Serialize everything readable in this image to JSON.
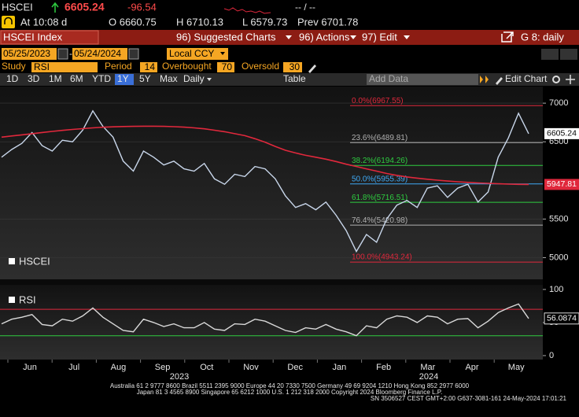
{
  "header": {
    "ticker": "HSCEI",
    "last": "6605.24",
    "change": "-96.54",
    "bid_ask": "-- / --",
    "time": "At 10:08 d",
    "open": "O 6660.75",
    "high": "H 6710.13",
    "low": "L 6579.73",
    "prev": "Prev 6701.78"
  },
  "menu": {
    "security": "HSCEI Index",
    "suggested": "96) Suggested Charts",
    "actions": "96) Actions",
    "edit": "97) Edit",
    "page": "G 8: daily"
  },
  "range": {
    "start": "05/25/2023",
    "end": "05/24/2024",
    "currency": "Local CCY"
  },
  "study": {
    "label": "Study",
    "name": "RSI",
    "period_label": "Period",
    "period": 14,
    "overbought_label": "Overbought",
    "overbought": 70,
    "oversold_label": "Oversold",
    "oversold": 30
  },
  "toolbar": {
    "periods": [
      "1D",
      "3D",
      "1M",
      "6M",
      "YTD",
      "1Y",
      "5Y",
      "Max"
    ],
    "frequency": "Daily",
    "table": "Table",
    "add_data": "Add Data",
    "edit_chart": "Edit Chart"
  },
  "chart_data": [
    {
      "type": "line",
      "series": [
        {
          "name": "HSCEI",
          "color": "#c8d6ea",
          "values": [
            6300,
            6400,
            6480,
            6620,
            6450,
            6380,
            6520,
            6500,
            6650,
            6900,
            6700,
            6560,
            6250,
            6120,
            6380,
            6300,
            6200,
            6250,
            6150,
            6120,
            6220,
            6020,
            5950,
            6080,
            6050,
            6180,
            6150,
            6020,
            5800,
            5650,
            5700,
            5620,
            5720,
            5550,
            5350,
            5080,
            5300,
            5200,
            5500,
            5680,
            5740,
            5650,
            5900,
            5930,
            5780,
            5900,
            5950,
            5720,
            5850,
            6300,
            6550,
            6870,
            6605.24
          ]
        },
        {
          "color": "#e0283c",
          "values": [
            6560,
            6575,
            6590,
            6605,
            6620,
            6635,
            6648,
            6660,
            6670,
            6680,
            6688,
            6694,
            6698,
            6700,
            6702,
            6702,
            6700,
            6696,
            6690,
            6680,
            6668,
            6650,
            6630,
            6605,
            6580,
            6540,
            6495,
            6440,
            6390,
            6355,
            6325,
            6300,
            6275,
            6245,
            6210,
            6180,
            6150,
            6120,
            6090,
            6065,
            6045,
            6030,
            6015,
            6003,
            5992,
            5983,
            5975,
            5968,
            5962,
            5957,
            5952,
            5949,
            5947.81
          ]
        }
      ],
      "ylim": [
        4720,
        7215
      ],
      "yticks": [
        5000,
        5500,
        6500,
        7000
      ],
      "grid": true,
      "x_labels": [
        "Jun",
        "Jul",
        "Aug",
        "Sep",
        "Oct",
        "Nov",
        "Dec",
        "Jan",
        "Feb",
        "Mar",
        "Apr",
        "May"
      ],
      "year_labels": [
        "2023",
        "2024"
      ],
      "levels": [
        {
          "value": 6967.55,
          "label": "0.0%(6967.55)",
          "color": "#e0283c"
        },
        {
          "value": 6489.81,
          "label": "23.6%(6489.81)",
          "color": "#b0b0b0"
        },
        {
          "value": 6194.26,
          "label": "38.2%(6194.26)",
          "color": "#2ecc40"
        },
        {
          "value": 5955.39,
          "label": "50.0%(5955.39)",
          "color": "#3fa9f5"
        },
        {
          "value": 5716.51,
          "label": "61.8%(5716.51)",
          "color": "#2ecc40"
        },
        {
          "value": 5420.98,
          "label": "76.4%(5420.98)",
          "color": "#b0b0b0"
        },
        {
          "value": 4943.24,
          "label": "100.0%(4943.24)",
          "color": "#e0283c"
        }
      ]
    },
    {
      "type": "line",
      "series": [
        {
          "name": "RSI",
          "color": "#d9d9d9",
          "values": [
            48,
            55,
            58,
            62,
            47,
            45,
            55,
            52,
            60,
            72,
            58,
            48,
            38,
            36,
            55,
            50,
            44,
            48,
            42,
            42,
            50,
            40,
            38,
            48,
            47,
            55,
            52,
            45,
            38,
            35,
            42,
            40,
            47,
            40,
            36,
            30,
            45,
            42,
            55,
            60,
            58,
            50,
            60,
            58,
            48,
            55,
            56,
            42,
            52,
            65,
            72,
            78,
            56.0874
          ]
        }
      ],
      "ylim": [
        -6,
        107
      ],
      "yticks": [
        0,
        50,
        100
      ]
    }
  ],
  "footer": {
    "lines": [
      "Australia 61 2 9777 8600 Brazil 5511 2395 9000 Europe 44 20 7330 7500 Germany 49 69 9204 1210 Hong Kong 852 2977 6000",
      "Japan 81 3 4565 8900      Singapore 65 6212 1000      U.S. 1 212 318 2000          Copyright 2024 Bloomberg Finance L.P.",
      "SN 3506527 CEST  GMT+2:00 G637-3081-161 24-May-2024 17:01:21"
    ]
  }
}
